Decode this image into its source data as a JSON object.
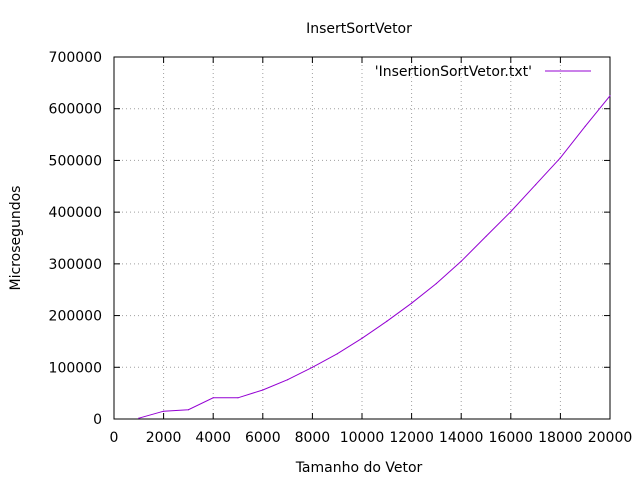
{
  "chart_data": {
    "type": "line",
    "title": "InsertSortVetor",
    "xlabel": "Tamanho do Vetor",
    "ylabel": "Microsegundos",
    "xlim": [
      0,
      20000
    ],
    "ylim": [
      0,
      700000
    ],
    "x_ticks": [
      0,
      2000,
      4000,
      6000,
      8000,
      10000,
      12000,
      14000,
      16000,
      18000,
      20000
    ],
    "y_ticks": [
      0,
      100000,
      200000,
      300000,
      400000,
      500000,
      600000,
      700000
    ],
    "x_tick_labels": [
      "0",
      "2000",
      "4000",
      "6000",
      "8000",
      "10000",
      "12000",
      "14000",
      "16000",
      "18000",
      "20000"
    ],
    "y_tick_labels": [
      "0",
      "100000",
      "200000",
      "300000",
      "400000",
      "500000",
      "600000",
      "700000"
    ],
    "grid": true,
    "legend_position": "top-right",
    "series": [
      {
        "name": "'InsertionSortVetor.txt'",
        "color": "#9400d3",
        "x": [
          1000,
          2000,
          3000,
          4000,
          5000,
          6000,
          7000,
          8000,
          9000,
          10000,
          11000,
          12000,
          13000,
          14000,
          15000,
          16000,
          17000,
          18000,
          19000,
          20000
        ],
        "y": [
          1500,
          15000,
          18000,
          41000,
          41000,
          56000,
          76000,
          100000,
          126000,
          156000,
          189000,
          224000,
          262000,
          305000,
          353000,
          401000,
          453000,
          505000,
          566000,
          625000
        ]
      }
    ]
  }
}
